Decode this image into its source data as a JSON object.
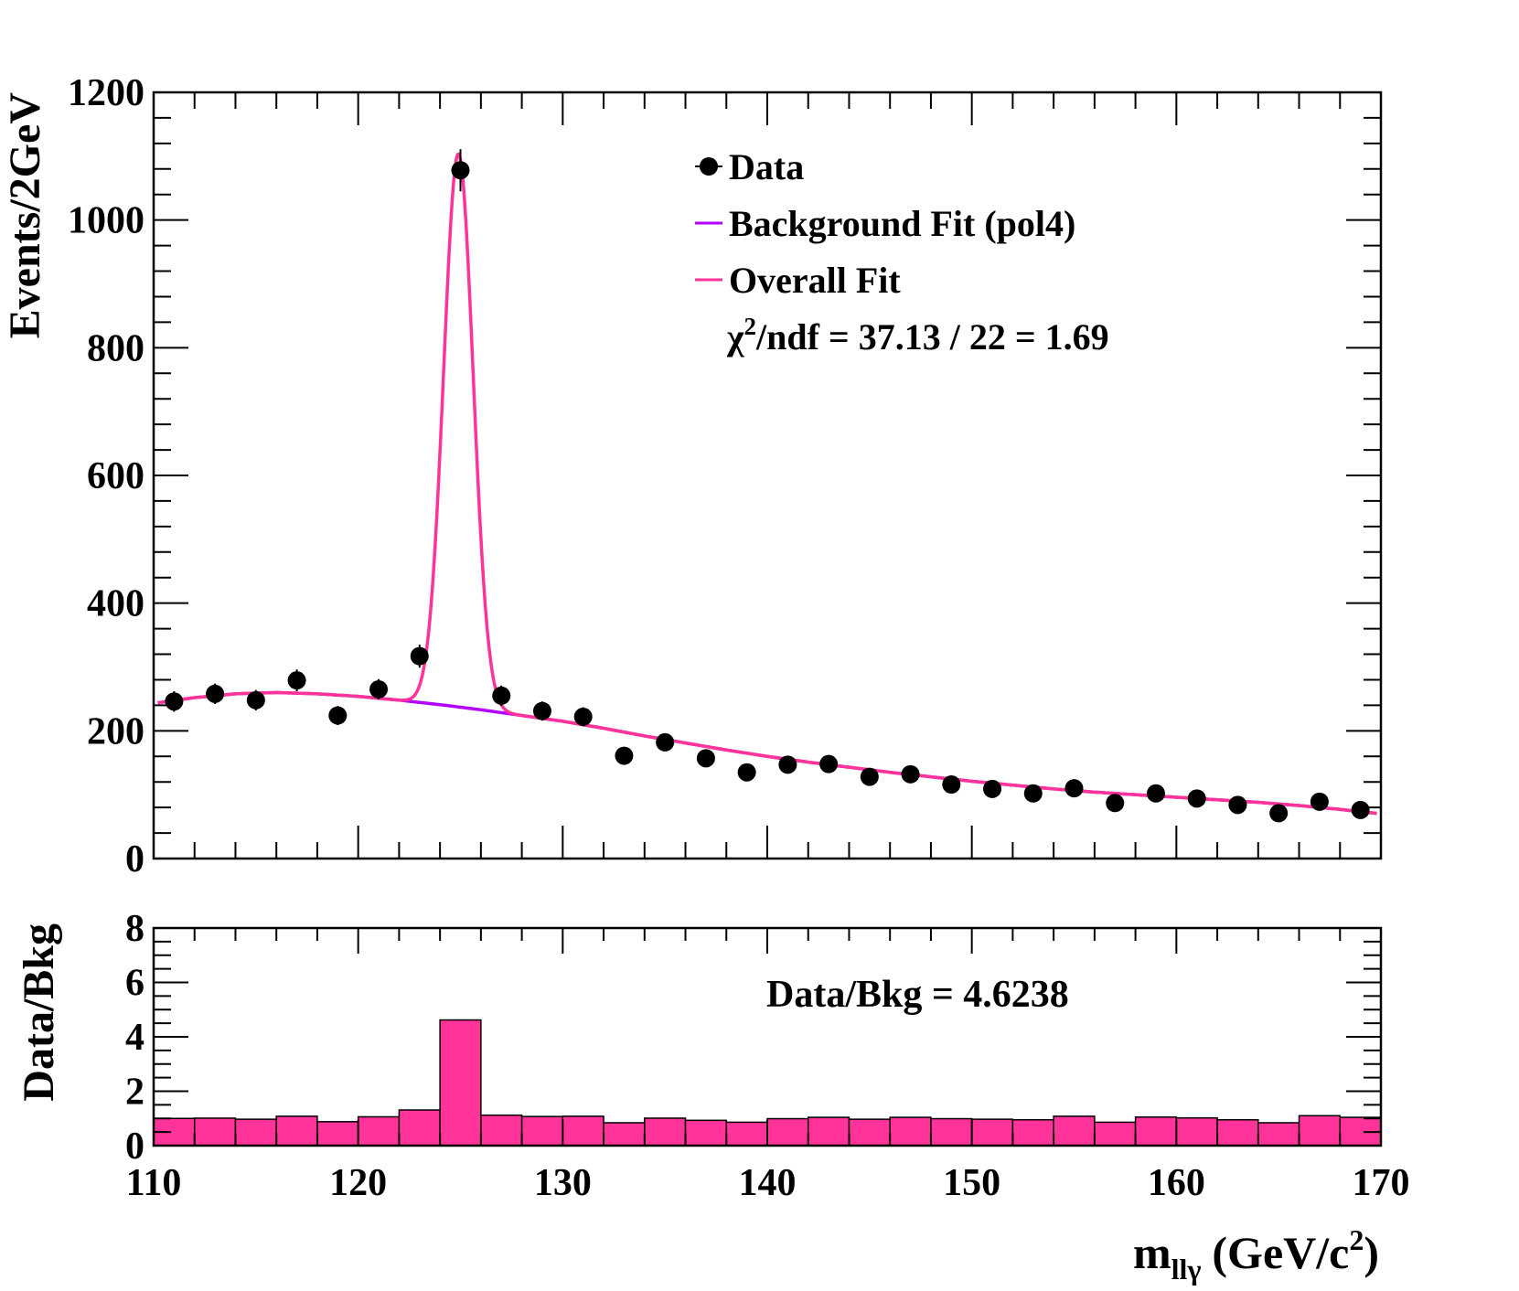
{
  "colors": {
    "data": "#000000",
    "background_fit": "#b400ff",
    "overall_fit": "#ff3399",
    "ratio_fill": "#ff3399",
    "frame": "#000000"
  },
  "chart_data": [
    {
      "type": "scatter",
      "name": "main-panel",
      "ylabel": "Events/2GeV",
      "xlim": [
        110,
        170
      ],
      "ylim": [
        0,
        1200
      ],
      "yticks": [
        "0",
        "200",
        "400",
        "600",
        "800",
        "1000",
        "1200"
      ],
      "ytick_values": [
        0,
        200,
        400,
        600,
        800,
        1000,
        1200
      ],
      "legend": {
        "placement": "top-right",
        "entries": [
          "Data",
          "Background Fit (pol4)",
          "Overall Fit"
        ],
        "chi2_label": "χ",
        "chi2_exponent": "2",
        "chi2_text": "/ndf = 37.13 / 22 = 1.69"
      },
      "series": [
        {
          "name": "Data",
          "kind": "points",
          "x": [
            111,
            113,
            115,
            117,
            119,
            121,
            123,
            125,
            127,
            129,
            131,
            133,
            135,
            137,
            139,
            141,
            143,
            145,
            147,
            149,
            151,
            153,
            155,
            157,
            159,
            161,
            163,
            165,
            167,
            169
          ],
          "y": [
            246,
            258,
            248,
            279,
            224,
            265,
            317,
            1078,
            255,
            231,
            222,
            161,
            182,
            157,
            135,
            147,
            148,
            128,
            132,
            116,
            109,
            102,
            110,
            87,
            102,
            94,
            84,
            71,
            89,
            76
          ],
          "err": [
            16,
            16,
            16,
            17,
            15,
            16,
            18,
            33,
            16,
            15,
            15,
            13,
            13,
            13,
            12,
            12,
            12,
            11,
            11,
            11,
            10,
            10,
            10,
            9,
            10,
            10,
            9,
            8,
            9,
            9
          ]
        },
        {
          "name": "Background Fit (pol4)",
          "kind": "curve",
          "x": [
            110,
            112,
            114,
            116,
            118,
            120,
            122,
            124,
            126,
            128,
            130,
            132,
            134,
            136,
            138,
            140,
            142,
            144,
            146,
            148,
            150,
            152,
            154,
            156,
            158,
            160,
            162,
            164,
            166,
            168,
            170
          ],
          "y": [
            243,
            252,
            258,
            260,
            258,
            254,
            248,
            241,
            233,
            224,
            215,
            204,
            192,
            181,
            170,
            160,
            151,
            143,
            135,
            128,
            121,
            115,
            109,
            104,
            100,
            96,
            92,
            88,
            83,
            77,
            70
          ]
        },
        {
          "name": "Overall Fit",
          "kind": "curve",
          "signal_peak_x": 124.9,
          "signal_amplitude": 866,
          "signal_sigma": 0.72
        }
      ]
    },
    {
      "type": "bar",
      "name": "ratio-panel",
      "ylabel": "Data/Bkg",
      "xlabel_main": "m",
      "xlabel_sub": "llγ",
      "xlabel_units": "(GeV/c",
      "xlabel_units_exp": "2",
      "xlabel_units_close": ")",
      "xlim": [
        110,
        170
      ],
      "ylim": [
        0,
        8
      ],
      "yticks": [
        "0",
        "2",
        "4",
        "6",
        "8"
      ],
      "ytick_values": [
        0,
        2,
        4,
        6,
        8
      ],
      "xticks": [
        "110",
        "120",
        "130",
        "140",
        "150",
        "160",
        "170"
      ],
      "xtick_values": [
        110,
        120,
        130,
        140,
        150,
        160,
        170
      ],
      "annotation": "Data/Bkg = 4.6238",
      "bin_edges_start": 110,
      "bin_width": 2,
      "values": [
        1.0,
        1.01,
        0.97,
        1.08,
        0.88,
        1.06,
        1.31,
        4.62,
        1.12,
        1.07,
        1.08,
        0.84,
        1.01,
        0.93,
        0.86,
        0.99,
        1.04,
        0.97,
        1.04,
        0.99,
        0.97,
        0.95,
        1.08,
        0.86,
        1.05,
        1.02,
        0.95,
        0.84,
        1.1,
        1.04
      ]
    }
  ]
}
